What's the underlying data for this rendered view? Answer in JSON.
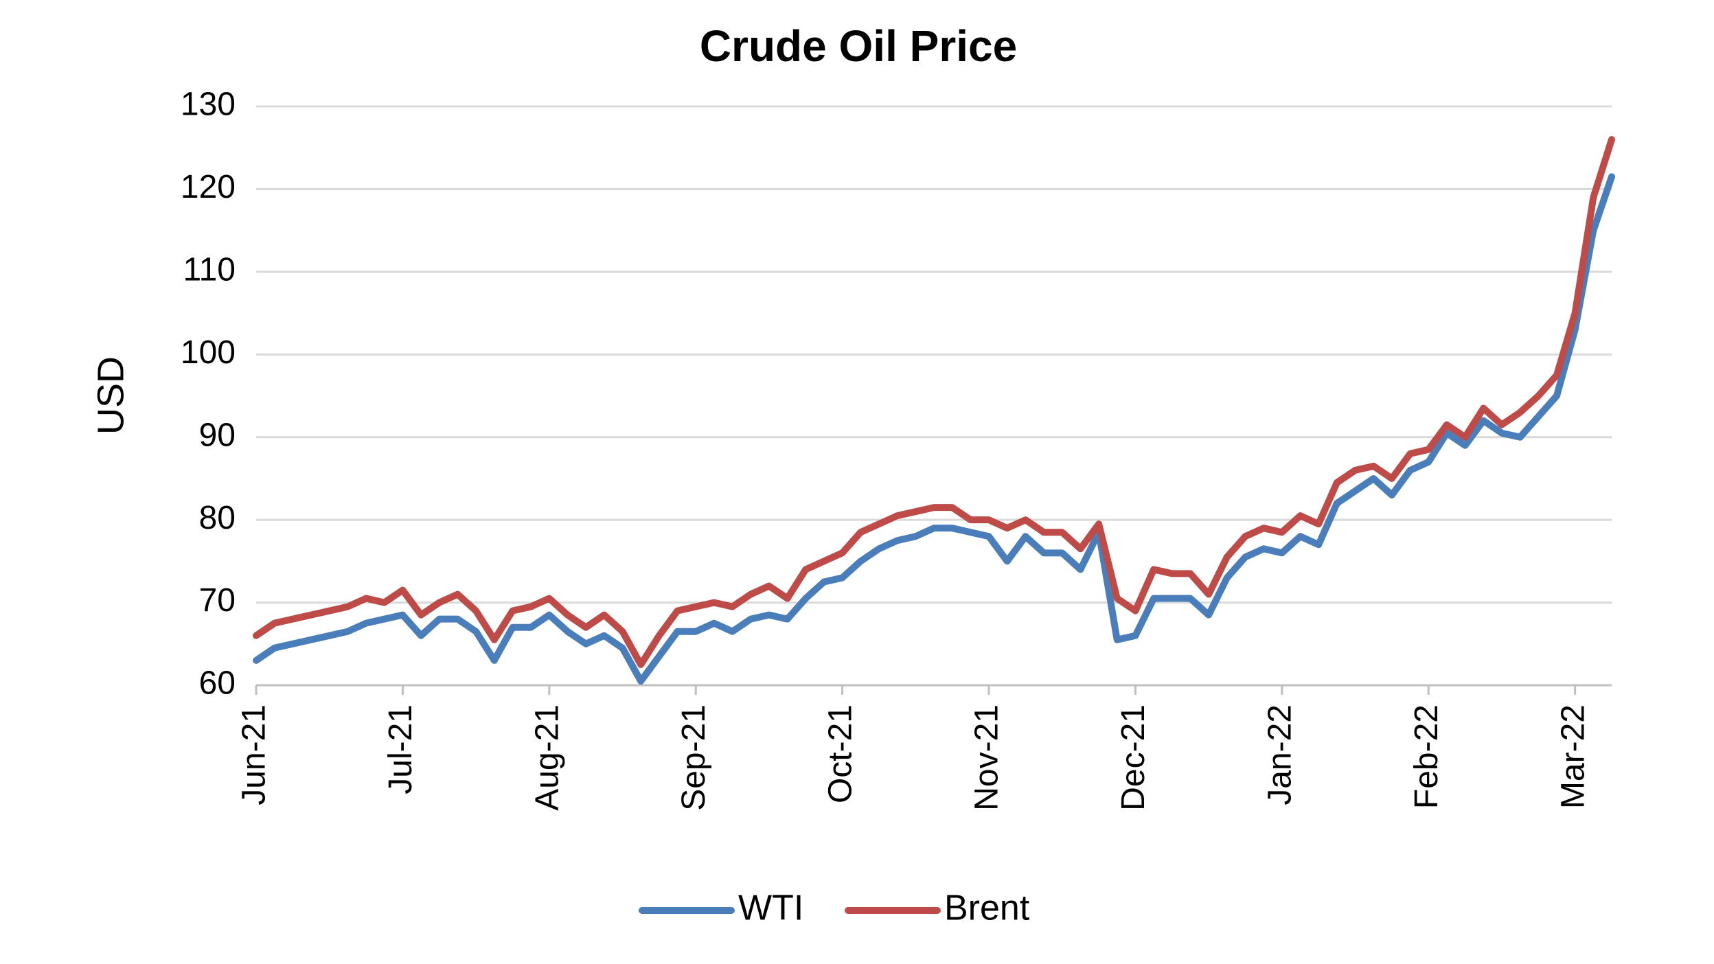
{
  "chart_data": {
    "type": "line",
    "title": "Crude Oil Price",
    "y_label": "USD",
    "categories": [
      "Jun-21",
      null,
      null,
      null,
      null,
      null,
      null,
      null,
      "Jul-21",
      null,
      null,
      null,
      null,
      null,
      null,
      null,
      "Aug-21",
      null,
      null,
      null,
      null,
      null,
      null,
      null,
      "Sep-21",
      null,
      null,
      null,
      null,
      null,
      null,
      null,
      "Oct-21",
      null,
      null,
      null,
      null,
      null,
      null,
      null,
      "Nov-21",
      null,
      null,
      null,
      null,
      null,
      null,
      null,
      "Dec-21",
      null,
      null,
      null,
      null,
      null,
      null,
      null,
      "Jan-22",
      null,
      null,
      null,
      null,
      null,
      null,
      null,
      "Feb-22",
      null,
      null,
      null,
      null,
      null,
      null,
      null,
      "Mar-22",
      null,
      null
    ],
    "series": [
      {
        "name": "WTI",
        "color": "#4a7ebb",
        "values": [
          63,
          64.5,
          65,
          65.5,
          66,
          66.5,
          67.5,
          68,
          68.5,
          66,
          68,
          68,
          66.5,
          63,
          67,
          67,
          68.5,
          66.5,
          65,
          66,
          64.5,
          60.5,
          63.5,
          66.5,
          66.5,
          67.5,
          66.5,
          68,
          68.5,
          68,
          70.5,
          72.5,
          73,
          75,
          76.5,
          77.5,
          78,
          79,
          79,
          78.5,
          78,
          75,
          78,
          76,
          76,
          74,
          78.5,
          65.5,
          66,
          70.5,
          70.5,
          70.5,
          68.5,
          73,
          75.5,
          76.5,
          76,
          78,
          77,
          82,
          83.5,
          85,
          83,
          86,
          87,
          90.5,
          89,
          92,
          90.5,
          90,
          92.5,
          95,
          103,
          115,
          121.5
        ]
      },
      {
        "name": "Brent",
        "color": "#be4b48",
        "values": [
          66,
          67.5,
          68,
          68.5,
          69,
          69.5,
          70.5,
          70,
          71.5,
          68.5,
          70,
          71,
          69,
          65.5,
          69,
          69.5,
          70.5,
          68.5,
          67,
          68.5,
          66.5,
          62.5,
          66,
          69,
          69.5,
          70,
          69.5,
          71,
          72,
          70.5,
          74,
          75,
          76,
          78.5,
          79.5,
          80.5,
          81,
          81.5,
          81.5,
          80,
          80,
          79,
          80,
          78.5,
          78.5,
          76.5,
          79.5,
          70.5,
          69,
          74,
          73.5,
          73.5,
          71,
          75.5,
          78,
          79,
          78.5,
          80.5,
          79.5,
          84.5,
          86,
          86.5,
          85,
          88,
          88.5,
          91.5,
          90,
          93.5,
          91.5,
          93,
          95,
          97.5,
          105,
          119,
          126
        ]
      }
    ],
    "ylim": [
      60,
      130
    ],
    "yticks": [
      60,
      70,
      80,
      90,
      100,
      110,
      120,
      130
    ],
    "grid": true,
    "legend": "bottom"
  }
}
